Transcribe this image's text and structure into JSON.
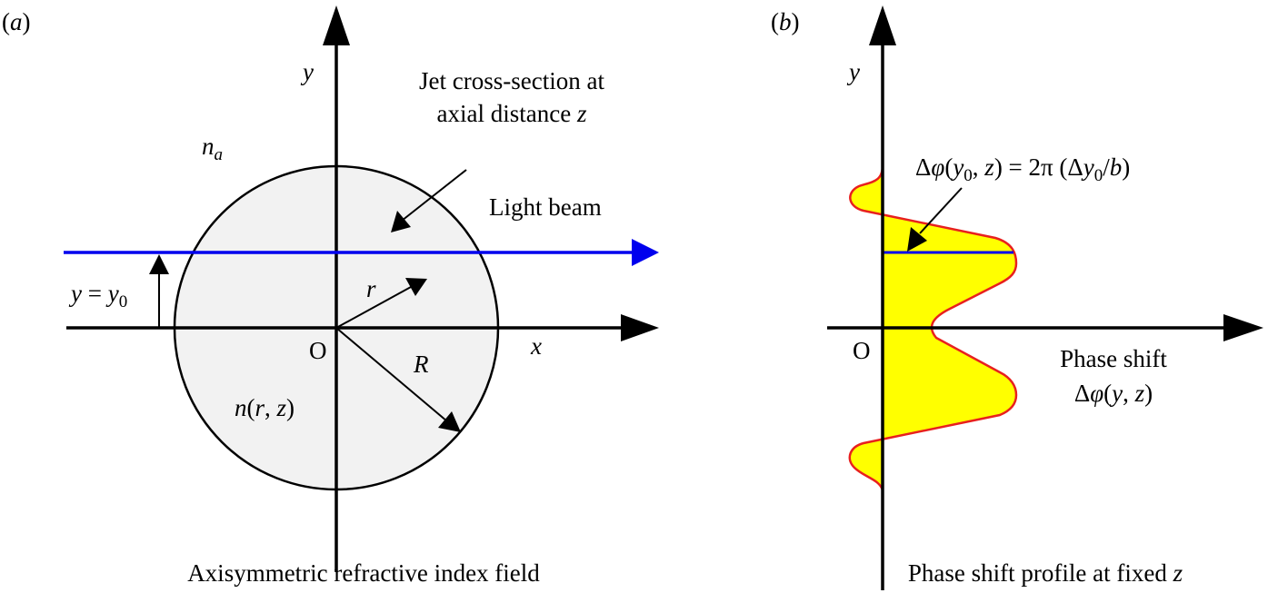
{
  "colors": {
    "beam": "#0000ee",
    "profile_fill": "#ffff00",
    "profile_stroke": "#e8201e",
    "jet_fill": "#f2f2f2",
    "axis": "#000000"
  },
  "panel_a": {
    "label_open": "(",
    "label_letter": "a",
    "label_close": ")",
    "y_axis": "y",
    "x_axis": "x",
    "origin": "O",
    "ambient_n": "n",
    "ambient_sub": "a",
    "jet_label_line1": "Jet cross-section at",
    "jet_label_line2": "axial distance ",
    "jet_label_z": "z",
    "beam_label": "Light beam",
    "y0_lhs": "y",
    "y0_eq": " = ",
    "y0_rhs": "y",
    "y0_sub": "0",
    "r_label": "r",
    "R_label": "R",
    "n_field_n": "n",
    "n_field_paren_open": "(",
    "n_field_r": "r",
    "n_field_comma": ", ",
    "n_field_z": "z",
    "n_field_paren_close": ")",
    "caption": "Axisymmetric refractive index field"
  },
  "panel_b": {
    "label_open": "(",
    "label_letter": "b",
    "label_close": ")",
    "y_axis": "y",
    "origin": "O",
    "eq_delta": "Δ",
    "eq_phi": "φ",
    "eq_open": "(",
    "eq_y": "y",
    "eq_sub": "0",
    "eq_comma": ", ",
    "eq_z": "z",
    "eq_rhs": ") = 2π (Δ",
    "eq_y2": "y",
    "eq_sub2": "0",
    "eq_slash": "/",
    "eq_b": "b",
    "eq_close": ")",
    "phase_line1": "Phase shift",
    "phase_delta": "Δ",
    "phase_phi": "φ",
    "phase_open": "(",
    "phase_y": "y",
    "phase_comma": ", ",
    "phase_z": "z",
    "phase_close": ")",
    "caption_text": "Phase shift profile at fixed ",
    "caption_z": "z"
  }
}
